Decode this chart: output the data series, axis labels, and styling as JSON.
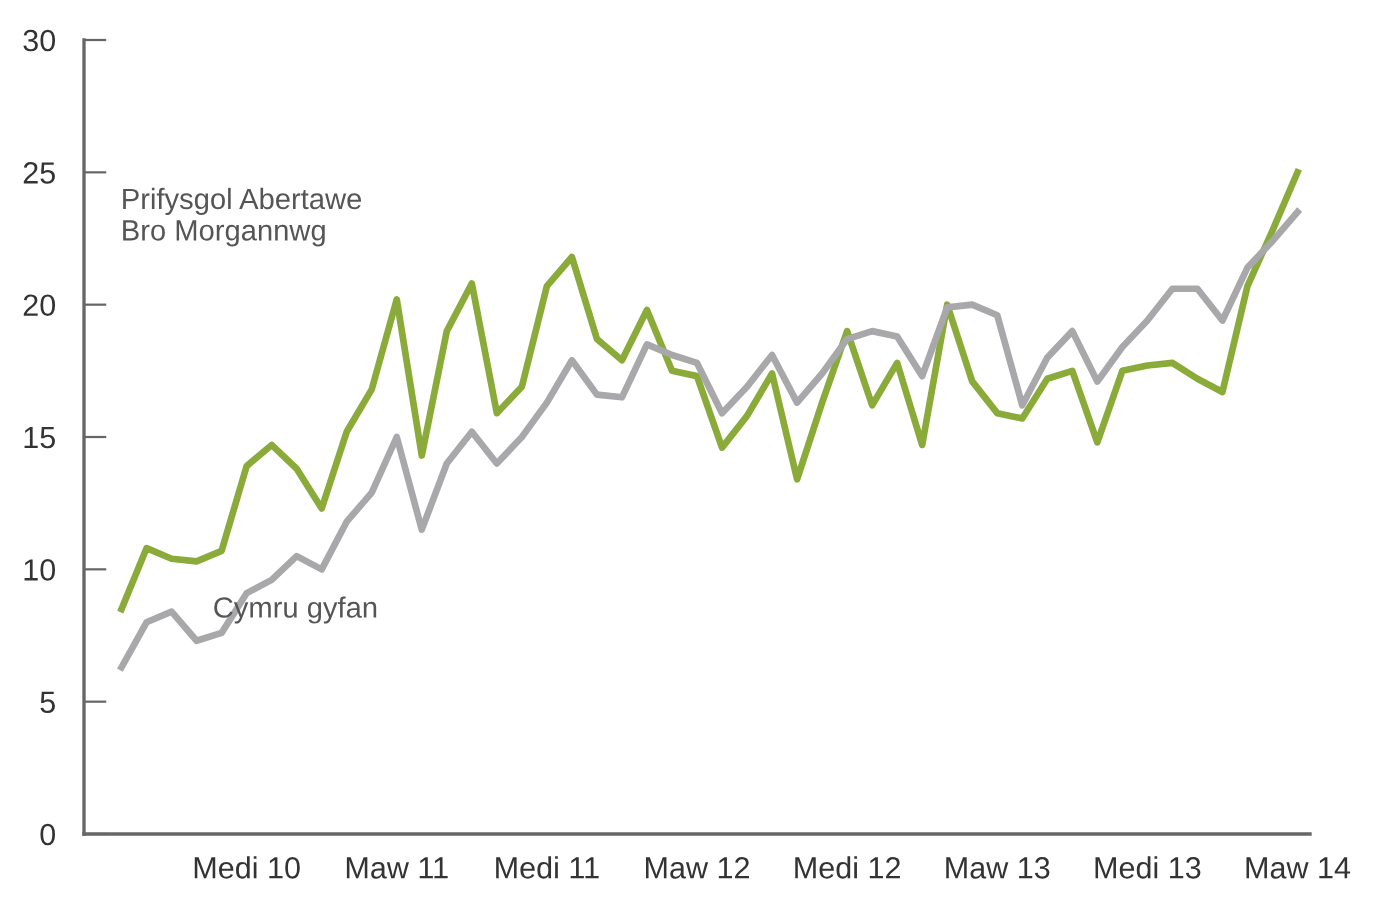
{
  "chart_data": {
    "type": "line",
    "categories": [
      null,
      null,
      null,
      null,
      null,
      "Medi 10",
      null,
      null,
      null,
      null,
      null,
      "Maw 11",
      null,
      null,
      null,
      null,
      null,
      "Medi 11",
      null,
      null,
      null,
      null,
      null,
      "Maw 12",
      null,
      null,
      null,
      null,
      null,
      "Medi 12",
      null,
      null,
      null,
      null,
      null,
      "Maw 13",
      null,
      null,
      null,
      null,
      null,
      "Medi 13",
      null,
      null,
      null,
      null,
      null,
      "Maw 14"
    ],
    "series": [
      {
        "name": "Prifysgol Abertawe\nBro Morgannwg",
        "color": "#8aab3a",
        "values": [
          8.5,
          10.8,
          10.4,
          10.3,
          10.7,
          13.9,
          14.7,
          13.8,
          12.3,
          15.2,
          16.8,
          20.2,
          14.3,
          19.0,
          20.8,
          15.9,
          16.9,
          20.7,
          21.8,
          18.7,
          17.9,
          19.8,
          17.5,
          17.3,
          14.6,
          15.8,
          17.4,
          13.4,
          16.3,
          19.0,
          16.2,
          17.8,
          14.7,
          20.0,
          17.1,
          15.9,
          15.7,
          17.2,
          17.5,
          14.8,
          17.5,
          17.7,
          17.8,
          17.2,
          16.7,
          20.7,
          22.8,
          25.0
        ]
      },
      {
        "name": "Cymru gyfan",
        "color": "#a8a8ab",
        "values": [
          6.3,
          8.0,
          8.4,
          7.3,
          7.6,
          9.1,
          9.6,
          10.5,
          10.0,
          11.8,
          12.9,
          15.0,
          11.5,
          14.0,
          15.2,
          14.0,
          15.0,
          16.3,
          17.9,
          16.6,
          16.5,
          18.5,
          18.1,
          17.8,
          15.9,
          16.9,
          18.1,
          16.3,
          17.4,
          18.7,
          19.0,
          18.8,
          17.3,
          19.9,
          20.0,
          19.6,
          16.2,
          18.0,
          19.0,
          17.1,
          18.4,
          19.4,
          20.6,
          20.6,
          19.4,
          21.4,
          22.4,
          23.5
        ]
      }
    ],
    "ylim": [
      0,
      30
    ],
    "yticks": [
      0,
      5,
      10,
      15,
      20,
      25,
      30
    ],
    "grid": false,
    "legend": false,
    "marker": "none",
    "line_style": "solid"
  }
}
